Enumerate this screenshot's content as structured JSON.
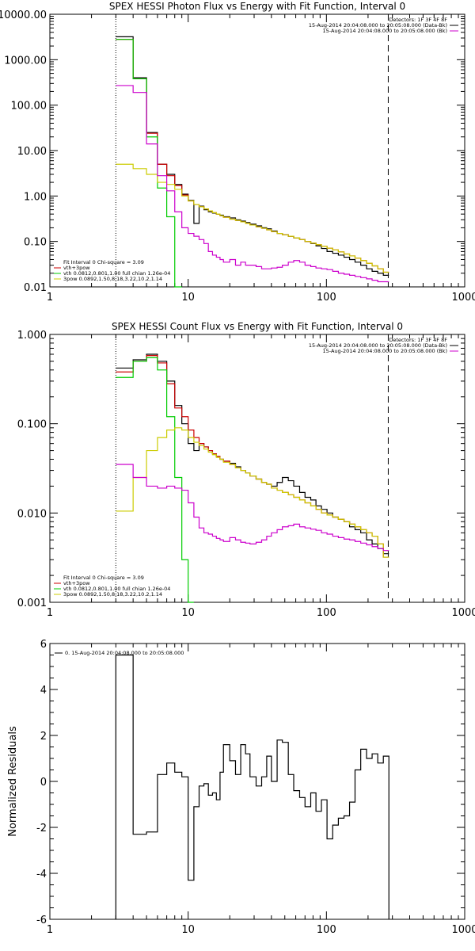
{
  "chart_data": [
    {
      "type": "line",
      "title": "SPEX HESSI Photon Flux vs Energy with Fit Function, Interval 0",
      "xscale": "log",
      "yscale": "log",
      "xlim": [
        1,
        1000
      ],
      "ylim": [
        0.01,
        10000
      ],
      "xticks": [
        "1",
        "10",
        "100",
        "1000"
      ],
      "yticks": [
        "0.01",
        "0.10",
        "1.00",
        "10.00",
        "100.00",
        "1000.00",
        "10000.00"
      ],
      "xlabel": "",
      "ylabel": "",
      "vlines": [
        {
          "x": 3,
          "style": "dotted"
        },
        {
          "x": 280,
          "style": "dashed"
        }
      ],
      "legend_right": {
        "position": "top-right",
        "entries": [
          {
            "text": "Detectors: 1F 3F 4F 8F",
            "color": "#000000"
          },
          {
            "text": "15-Aug-2014 20:04:08.000 to 20:05:08.000 (Data-Bk)",
            "color": "#000000"
          },
          {
            "text": "15-Aug-2014 20:04:08.000 to 20:05:08.000 (Bk)",
            "color": "#cc00cc"
          }
        ]
      },
      "legend_left": {
        "position": "bottom-left",
        "entries": [
          {
            "text": "Fit Interval 0   Chi-square = 3.09",
            "color": "#000000"
          },
          {
            "text": "vth+3pow",
            "color": "#cc0000"
          },
          {
            "text": "vth 0.0812,0.801,1.00  full chian 1.26e-04",
            "color": "#00cc00"
          },
          {
            "text": "3pow 0.0892,1.50,8.18,3.22,10.2,1.14",
            "color": "#cccc00"
          }
        ]
      },
      "edges": [
        3,
        4,
        5,
        6,
        7,
        8,
        9,
        10,
        11,
        12,
        13,
        14,
        15,
        16,
        17,
        18,
        20,
        22,
        24,
        26,
        28,
        31,
        34,
        37,
        40,
        44,
        48,
        53,
        58,
        64,
        70,
        77,
        84,
        92,
        101,
        111,
        122,
        134,
        147,
        161,
        177,
        195,
        214,
        235,
        258,
        283
      ],
      "series": [
        {
          "name": "Data-Bk",
          "color": "#000000",
          "values": [
            3200,
            400,
            25,
            5,
            3,
            1.8,
            1.1,
            0.8,
            0.25,
            0.6,
            0.5,
            0.45,
            0.42,
            0.4,
            0.38,
            0.35,
            0.33,
            0.3,
            0.28,
            0.26,
            0.24,
            0.22,
            0.2,
            0.19,
            0.17,
            0.15,
            0.14,
            0.13,
            0.12,
            0.11,
            0.1,
            0.09,
            0.08,
            0.07,
            0.06,
            0.055,
            0.05,
            0.045,
            0.04,
            0.035,
            0.03,
            0.025,
            0.022,
            0.02,
            0.018
          ]
        },
        {
          "name": "vth+3pow",
          "color": "#cc0000",
          "values": [
            2800,
            380,
            24,
            5,
            2.8,
            1.7,
            1.05,
            0.78,
            0.65,
            0.58,
            0.52,
            0.47,
            0.43,
            0.4,
            0.37,
            0.34,
            0.31,
            0.29,
            0.27,
            0.25,
            0.23,
            0.21,
            0.195,
            0.18,
            0.165,
            0.15,
            0.14,
            0.13,
            0.12,
            0.11,
            0.1,
            0.092,
            0.085,
            0.078,
            0.071,
            0.065,
            0.059,
            0.053,
            0.048,
            0.043,
            0.038,
            0.033,
            0.029,
            0.025,
            0.021
          ]
        },
        {
          "name": "vth",
          "color": "#00cc00",
          "values": [
            2800,
            380,
            20,
            1.5,
            0.35,
            0.009
          ]
        },
        {
          "name": "3pow",
          "color": "#cccc00",
          "values": [
            5,
            4,
            3,
            2,
            1.8,
            1.4,
            1.0,
            0.78,
            0.65,
            0.58,
            0.52,
            0.47,
            0.43,
            0.4,
            0.37,
            0.34,
            0.31,
            0.29,
            0.27,
            0.25,
            0.23,
            0.21,
            0.195,
            0.18,
            0.165,
            0.15,
            0.14,
            0.13,
            0.12,
            0.11,
            0.1,
            0.092,
            0.085,
            0.078,
            0.071,
            0.065,
            0.059,
            0.053,
            0.048,
            0.043,
            0.038,
            0.033,
            0.029,
            0.025,
            0.021
          ]
        },
        {
          "name": "Bk",
          "color": "#cc00cc",
          "values": [
            270,
            190,
            14,
            2.8,
            1.3,
            0.45,
            0.2,
            0.15,
            0.13,
            0.11,
            0.09,
            0.06,
            0.05,
            0.045,
            0.04,
            0.035,
            0.04,
            0.03,
            0.035,
            0.03,
            0.03,
            0.028,
            0.025,
            0.025,
            0.026,
            0.027,
            0.03,
            0.035,
            0.038,
            0.035,
            0.03,
            0.028,
            0.026,
            0.025,
            0.024,
            0.022,
            0.02,
            0.019,
            0.018,
            0.017,
            0.016,
            0.015,
            0.014,
            0.013,
            0.013
          ]
        }
      ]
    },
    {
      "type": "line",
      "title": "SPEX HESSI Count Flux vs Energy with Fit Function, Interval 0",
      "xscale": "log",
      "yscale": "log",
      "xlim": [
        1,
        1000
      ],
      "ylim": [
        0.001,
        1
      ],
      "xticks": [
        "1",
        "10",
        "100",
        "1000"
      ],
      "yticks": [
        "0.001",
        "0.010",
        "0.100",
        "1.000"
      ],
      "xlabel": "",
      "ylabel": "",
      "vlines": [
        {
          "x": 3,
          "style": "dotted"
        },
        {
          "x": 280,
          "style": "dashed"
        }
      ],
      "legend_right": {
        "position": "top-right",
        "entries": [
          {
            "text": "Detectors: 1F 3F 4F 8F",
            "color": "#000000"
          },
          {
            "text": "15-Aug-2014 20:04:08.000 to 20:05:08.000 (Data-Bk)",
            "color": "#000000"
          },
          {
            "text": "15-Aug-2014 20:04:08.000 to 20:05:08.000 (Bk)",
            "color": "#cc00cc"
          }
        ]
      },
      "legend_left": {
        "position": "bottom-left",
        "entries": [
          {
            "text": "Fit Interval 0   Chi-square = 3.09",
            "color": "#000000"
          },
          {
            "text": "vth+3pow",
            "color": "#cc0000"
          },
          {
            "text": "vth 0.0812,0.801,1.00  full chian 1.26e-04",
            "color": "#00cc00"
          },
          {
            "text": "3pow 0.0892,1.50,8.18,3.22,10.2,1.14",
            "color": "#cccc00"
          }
        ]
      },
      "edges": [
        3,
        4,
        5,
        6,
        7,
        8,
        9,
        10,
        11,
        12,
        13,
        14,
        15,
        16,
        17,
        18,
        20,
        22,
        24,
        26,
        28,
        31,
        34,
        37,
        40,
        44,
        48,
        53,
        58,
        64,
        70,
        77,
        84,
        92,
        101,
        111,
        122,
        134,
        147,
        161,
        177,
        195,
        214,
        235,
        258,
        283
      ],
      "series": [
        {
          "name": "Data-Bk",
          "color": "#000000",
          "values": [
            0.42,
            0.52,
            0.6,
            0.5,
            0.3,
            0.16,
            0.1,
            0.06,
            0.05,
            0.06,
            0.055,
            0.05,
            0.046,
            0.043,
            0.04,
            0.038,
            0.036,
            0.033,
            0.03,
            0.028,
            0.026,
            0.024,
            0.022,
            0.021,
            0.02,
            0.022,
            0.025,
            0.023,
            0.02,
            0.017,
            0.015,
            0.014,
            0.012,
            0.011,
            0.01,
            0.009,
            0.0085,
            0.008,
            0.007,
            0.0065,
            0.006,
            0.005,
            0.0045,
            0.004,
            0.0035
          ]
        },
        {
          "name": "vth+3pow",
          "color": "#cc0000",
          "values": [
            0.38,
            0.5,
            0.58,
            0.48,
            0.28,
            0.15,
            0.12,
            0.085,
            0.07,
            0.06,
            0.055,
            0.05,
            0.046,
            0.043,
            0.04,
            0.038,
            0.035,
            0.032,
            0.03,
            0.028,
            0.026,
            0.024,
            0.022,
            0.021,
            0.019,
            0.018,
            0.017,
            0.016,
            0.015,
            0.014,
            0.013,
            0.012,
            0.011,
            0.01,
            0.0095,
            0.009,
            0.0085,
            0.008,
            0.0075,
            0.007,
            0.0065,
            0.006,
            0.0055,
            0.0045,
            0.0032
          ]
        },
        {
          "name": "vth",
          "color": "#00cc00",
          "values": [
            0.33,
            0.5,
            0.55,
            0.4,
            0.12,
            0.025,
            0.003,
            0.0009
          ]
        },
        {
          "name": "3pow",
          "color": "#cccc00",
          "values": [
            0.0105,
            0.025,
            0.05,
            0.07,
            0.085,
            0.09,
            0.085,
            0.07,
            0.062,
            0.057,
            0.052,
            0.048,
            0.045,
            0.042,
            0.04,
            0.037,
            0.035,
            0.032,
            0.03,
            0.028,
            0.026,
            0.024,
            0.022,
            0.021,
            0.019,
            0.018,
            0.017,
            0.016,
            0.015,
            0.014,
            0.013,
            0.012,
            0.011,
            0.01,
            0.0095,
            0.009,
            0.0085,
            0.008,
            0.0075,
            0.007,
            0.0065,
            0.006,
            0.0055,
            0.0045,
            0.0032
          ]
        },
        {
          "name": "Bk",
          "color": "#cc00cc",
          "values": [
            0.035,
            0.025,
            0.02,
            0.019,
            0.02,
            0.019,
            0.018,
            0.013,
            0.009,
            0.0068,
            0.006,
            0.0058,
            0.0055,
            0.0052,
            0.005,
            0.0048,
            0.0053,
            0.005,
            0.0047,
            0.0046,
            0.0045,
            0.0047,
            0.005,
            0.0055,
            0.006,
            0.0065,
            0.007,
            0.0072,
            0.0075,
            0.007,
            0.0068,
            0.0066,
            0.0064,
            0.006,
            0.0058,
            0.0055,
            0.0053,
            0.0051,
            0.005,
            0.0048,
            0.0046,
            0.0044,
            0.0042,
            0.004,
            0.0038
          ]
        }
      ]
    },
    {
      "type": "line",
      "title": "",
      "xscale": "log",
      "yscale": "linear",
      "xlim": [
        1,
        1000
      ],
      "ylim": [
        -6,
        6
      ],
      "xticks": [
        "1",
        "10",
        "100",
        "1000"
      ],
      "yticks": [
        "-6",
        "-4",
        "-2",
        "0",
        "2",
        "4",
        "6"
      ],
      "xlabel": "",
      "ylabel": "Normalized Residuals",
      "legend": {
        "position": "top-left",
        "entries": [
          {
            "text": "0. 15-Aug-2014 20:04:08.000 to 20:05:08.000",
            "color": "#000000"
          }
        ]
      },
      "edges": [
        3,
        4,
        5,
        6,
        7,
        8,
        9,
        10,
        11,
        12,
        13,
        14,
        15,
        16,
        17,
        18,
        20,
        22,
        24,
        26,
        28,
        31,
        34,
        37,
        40,
        44,
        48,
        53,
        58,
        64,
        70,
        77,
        84,
        92,
        101,
        111,
        122,
        134,
        147,
        161,
        177,
        195,
        214,
        235,
        258,
        283
      ],
      "series": [
        {
          "name": "Residuals",
          "color": "#000000",
          "values": [
            5.5,
            -2.3,
            -2.2,
            0.3,
            0.8,
            0.4,
            0.2,
            -4.3,
            -1.1,
            -0.2,
            -0.1,
            -0.6,
            -0.5,
            -0.8,
            0.4,
            1.6,
            0.9,
            0.3,
            1.6,
            1.2,
            0.2,
            -0.2,
            0.2,
            1.1,
            0.0,
            1.8,
            1.7,
            0.3,
            -0.4,
            -0.7,
            -1.1,
            -0.5,
            -1.3,
            -0.8,
            -2.5,
            -1.9,
            -1.6,
            -1.5,
            -0.9,
            0.5,
            1.4,
            1.0,
            1.2,
            0.8,
            1.1
          ]
        }
      ]
    }
  ]
}
